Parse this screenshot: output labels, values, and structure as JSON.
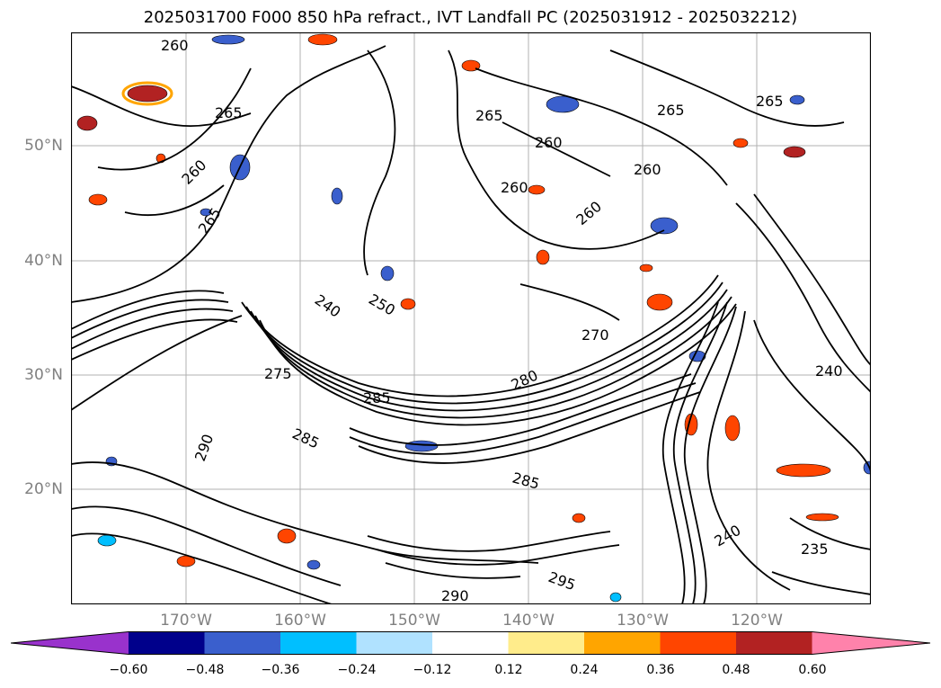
{
  "title": "2025031700 F000 850 hPa refract., IVT Landfall PC (2025031912 - 2025032212)",
  "map": {
    "latitude_labels": [
      "50°N",
      "40°N",
      "30°N",
      "20°N"
    ],
    "longitude_labels": [
      "170°W",
      "160°W",
      "150°W",
      "140°W",
      "130°W",
      "120°W"
    ],
    "contour_labels": [
      "260",
      "265",
      "260",
      "265",
      "240",
      "250",
      "275",
      "285",
      "285",
      "280",
      "270",
      "260",
      "260",
      "265",
      "260",
      "265",
      "260",
      "265",
      "240",
      "285",
      "290",
      "240",
      "235",
      "295",
      "290"
    ]
  },
  "colorbar": {
    "tick_labels": [
      "−0.60",
      "−0.48",
      "−0.36",
      "−0.24",
      "−0.12",
      "0.12",
      "0.24",
      "0.36",
      "0.48",
      "0.60"
    ],
    "colors": [
      "#9932cc",
      "#00008b",
      "#3a5fcd",
      "#00bfff",
      "#b0e2ff",
      "#ffffff",
      "#ffec8b",
      "#ffa500",
      "#ff4500",
      "#b22222",
      "#ff82ab"
    ]
  },
  "colors": {
    "contour": "#000000",
    "grid": "#b0b0b0",
    "axis_label": "#808080"
  }
}
